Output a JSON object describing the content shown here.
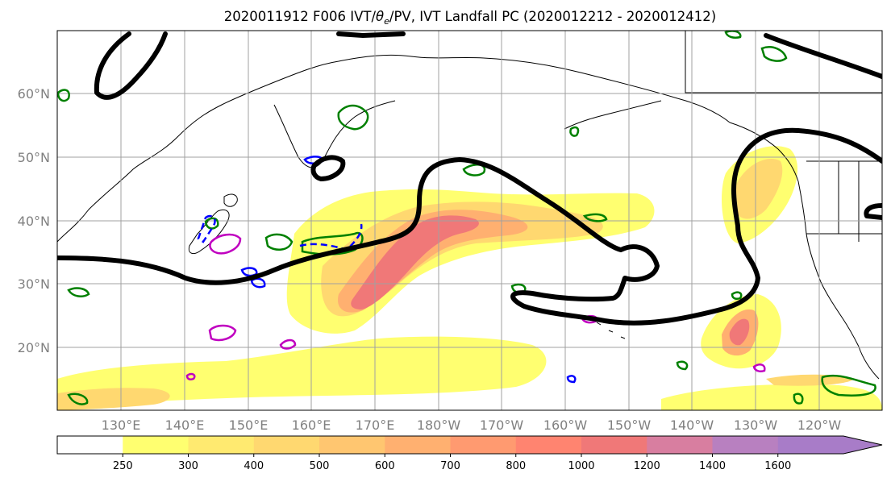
{
  "title": "2020011912 F006 IVT/θe/PV, IVT Landfall PC (2020012212 - 2020012412)",
  "title_parts": {
    "prefix": "2020011912 F006 IVT/",
    "theta": "θ",
    "theta_sub": "e",
    "suffix": "/PV, IVT Landfall PC (2020012212 - 2020012412)"
  },
  "map": {
    "lat_labels": [
      "60°N",
      "50°N",
      "40°N",
      "30°N",
      "20°N"
    ],
    "lon_labels": [
      "130°E",
      "140°E",
      "150°E",
      "160°E",
      "170°E",
      "180°W",
      "170°W",
      "160°W",
      "150°W",
      "140°W",
      "130°W",
      "120°W"
    ],
    "grid": true,
    "ivt_color_hint": "#f08080"
  },
  "colorbar": {
    "ticks": [
      "250",
      "300",
      "400",
      "500",
      "600",
      "700",
      "800",
      "1000",
      "1200",
      "1400",
      "1600"
    ],
    "colors": [
      "#ffffff",
      "#ffff70",
      "#ffea70",
      "#ffd870",
      "#ffc670",
      "#ffb070",
      "#ff9a70",
      "#ff8470",
      "#f07878",
      "#d87ea0",
      "#b880c0",
      "#a87cc8"
    ]
  }
}
